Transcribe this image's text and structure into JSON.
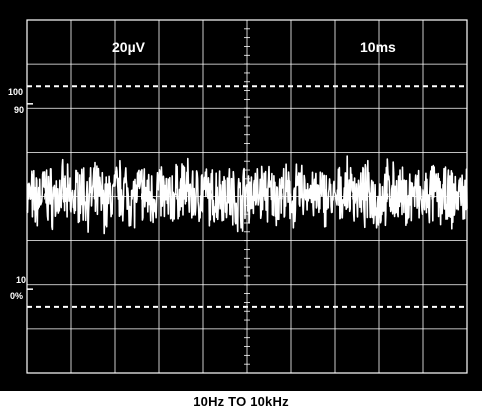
{
  "chart_data": {
    "type": "line",
    "title": "",
    "subtitle": "",
    "volts_per_div": "20µV",
    "time_per_div": "10ms",
    "caption": "10Hz TO 10kHz",
    "grid": true,
    "grid_divisions": {
      "x": 10,
      "y": 8
    },
    "reference_labels": [
      "100",
      "90",
      "10",
      "0%"
    ],
    "x_range_div": [
      0,
      10
    ],
    "y_range_div": [
      -4,
      4
    ],
    "trace_description": "wideband noise, approx ±1 division",
    "series": [
      {
        "x": [
          0,
          0.2,
          0.4,
          0.6,
          0.8,
          1,
          1.2,
          1.4,
          1.6,
          1.8,
          2,
          2.2,
          2.4,
          2.6,
          2.8,
          3,
          3.2,
          3.4,
          3.6,
          3.8,
          4,
          4.2,
          4.4,
          4.6,
          4.8,
          5,
          5.2,
          5.4,
          5.6,
          5.8,
          6,
          6.2,
          6.4,
          6.6,
          6.8,
          7,
          7.2,
          7.4,
          7.6,
          7.8,
          8,
          8.2,
          8.4,
          8.6,
          8.8,
          9,
          9.2,
          9.4,
          9.6,
          9.8,
          10
        ],
        "y": [
          0.1,
          -0.4,
          0.5,
          -0.2,
          0.3,
          -0.5,
          0.6,
          -0.1,
          0.2,
          -0.6,
          0.4,
          0.7,
          -0.3,
          0.5,
          -0.2,
          0.6,
          -0.4,
          0.3,
          0.8,
          -0.1,
          0.5,
          -0.3,
          0.6,
          0.2,
          -0.5,
          0.4,
          0.1,
          0.6,
          -0.2,
          0.5,
          -0.4,
          0.3,
          0.7,
          -0.3,
          0.2,
          -0.6,
          0.4,
          0.6,
          -0.1,
          0.3,
          -0.5,
          0.5,
          0.2,
          -0.3,
          0.4,
          -0.6,
          0.3,
          0.1,
          -0.4,
          0.2,
          -0.1
        ]
      }
    ]
  }
}
